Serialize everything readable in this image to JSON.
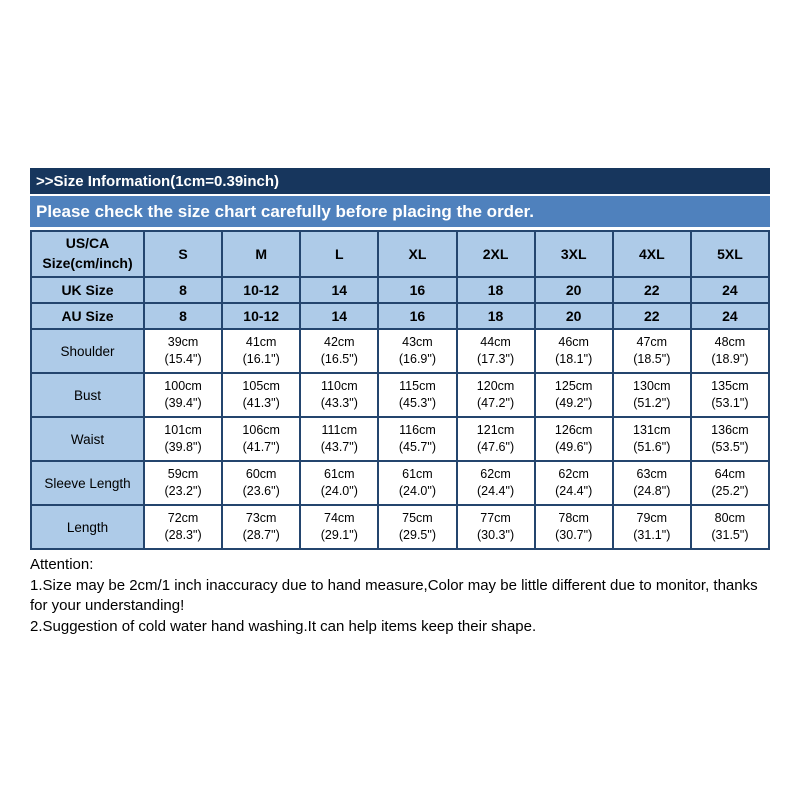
{
  "header": {
    "title": ">>Size Information(1cm=0.39inch)",
    "subtitle": "Please check the size chart carefully before placing the order."
  },
  "table": {
    "corner": "US/CA\nSize(cm/inch)",
    "sizes": [
      "S",
      "M",
      "L",
      "XL",
      "2XL",
      "3XL",
      "4XL",
      "5XL"
    ],
    "uk": {
      "label": "UK Size",
      "values": [
        "8",
        "10-12",
        "14",
        "16",
        "18",
        "20",
        "22",
        "24"
      ]
    },
    "au": {
      "label": "AU Size",
      "values": [
        "8",
        "10-12",
        "14",
        "16",
        "18",
        "20",
        "22",
        "24"
      ]
    },
    "rows": [
      {
        "label": "Shoulder",
        "values": [
          "39cm\n(15.4\")",
          "41cm\n(16.1\")",
          "42cm\n(16.5\")",
          "43cm\n(16.9\")",
          "44cm\n(17.3\")",
          "46cm\n(18.1\")",
          "47cm\n(18.5\")",
          "48cm\n(18.9\")"
        ]
      },
      {
        "label": "Bust",
        "values": [
          "100cm\n(39.4\")",
          "105cm\n(41.3\")",
          "110cm\n(43.3\")",
          "115cm\n(45.3\")",
          "120cm\n(47.2\")",
          "125cm\n(49.2\")",
          "130cm\n(51.2\")",
          "135cm\n(53.1\")"
        ]
      },
      {
        "label": "Waist",
        "values": [
          "101cm\n(39.8\")",
          "106cm\n(41.7\")",
          "111cm\n(43.7\")",
          "116cm\n(45.7\")",
          "121cm\n(47.6\")",
          "126cm\n(49.6\")",
          "131cm\n(51.6\")",
          "136cm\n(53.5\")"
        ]
      },
      {
        "label": "Sleeve Length",
        "values": [
          "59cm\n(23.2\")",
          "60cm\n(23.6\")",
          "61cm\n(24.0\")",
          "61cm\n(24.0\")",
          "62cm\n(24.4\")",
          "62cm\n(24.4\")",
          "63cm\n(24.8\")",
          "64cm\n(25.2\")"
        ]
      },
      {
        "label": "Length",
        "values": [
          "72cm\n(28.3\")",
          "73cm\n(28.7\")",
          "74cm\n(29.1\")",
          "75cm\n(29.5\")",
          "77cm\n(30.3\")",
          "78cm\n(30.7\")",
          "79cm\n(31.1\")",
          "80cm\n(31.5\")"
        ]
      }
    ]
  },
  "notes": {
    "title": "Attention:",
    "line1": "1.Size may be 2cm/1 inch inaccuracy due to hand measure,Color may be little different due to monitor, thanks for your understanding!",
    "line2": "2.Suggestion of cold water hand washing.It can help items keep their shape."
  },
  "colors": {
    "title_bar": "#17365d",
    "banner": "#4f81bd",
    "highlight_cell": "#aecbe8",
    "border": "#24456e",
    "text": "#000000"
  },
  "chart_data": {
    "type": "table",
    "title": ">>Size Information(1cm=0.39inch)",
    "subtitle": "Please check the size chart carefully before placing the order.",
    "columns": [
      "US/CA Size(cm/inch)",
      "S",
      "M",
      "L",
      "XL",
      "2XL",
      "3XL",
      "4XL",
      "5XL"
    ],
    "rows": [
      [
        "UK Size",
        "8",
        "10-12",
        "14",
        "16",
        "18",
        "20",
        "22",
        "24"
      ],
      [
        "AU Size",
        "8",
        "10-12",
        "14",
        "16",
        "18",
        "20",
        "22",
        "24"
      ],
      [
        "Shoulder",
        "39cm (15.4\")",
        "41cm (16.1\")",
        "42cm (16.5\")",
        "43cm (16.9\")",
        "44cm (17.3\")",
        "46cm (18.1\")",
        "47cm (18.5\")",
        "48cm (18.9\")"
      ],
      [
        "Bust",
        "100cm (39.4\")",
        "105cm (41.3\")",
        "110cm (43.3\")",
        "115cm (45.3\")",
        "120cm (47.2\")",
        "125cm (49.2\")",
        "130cm (51.2\")",
        "135cm (53.1\")"
      ],
      [
        "Waist",
        "101cm (39.8\")",
        "106cm (41.7\")",
        "111cm (43.7\")",
        "116cm (45.7\")",
        "121cm (47.6\")",
        "126cm (49.6\")",
        "131cm (51.6\")",
        "136cm (53.5\")"
      ],
      [
        "Sleeve Length",
        "59cm (23.2\")",
        "60cm (23.6\")",
        "61cm (24.0\")",
        "61cm (24.0\")",
        "62cm (24.4\")",
        "62cm (24.4\")",
        "63cm (24.8\")",
        "64cm (25.2\")"
      ],
      [
        "Length",
        "72cm (28.3\")",
        "73cm (28.7\")",
        "74cm (29.1\")",
        "75cm (29.5\")",
        "77cm (30.3\")",
        "78cm (30.7\")",
        "79cm (31.1\")",
        "80cm (31.5\")"
      ]
    ]
  }
}
